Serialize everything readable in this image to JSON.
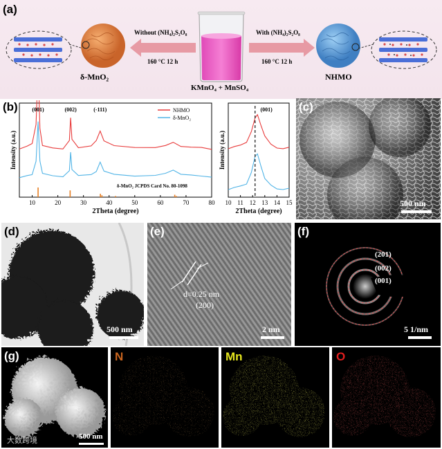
{
  "panel_a": {
    "label": "(a)",
    "left_arrow_top": "Without (NH₄)₂S₂O₈",
    "left_arrow_bottom": "160 °C 12 h",
    "right_arrow_top": "With (NH₄)₂S₂O₈",
    "right_arrow_bottom": "160 °C 12 h",
    "left_product": "δ-MnO₂",
    "right_product": "NHMO",
    "beaker_label": "KMnO₄ + MnSO₄"
  },
  "panel_b": {
    "label": "(b)"
  },
  "panel_c": {
    "label": "(c)",
    "scale_bar": "500 nm"
  },
  "panel_d": {
    "label": "(d)",
    "scale_bar": "500 nm"
  },
  "panel_e": {
    "label": "(e)",
    "scale_bar": "2 nm",
    "d_spacing": "d=0.25 nm",
    "plane": "(200)"
  },
  "panel_f": {
    "label": "(f)",
    "scale_bar": "5 1/nm",
    "rings": [
      "(201)",
      "(002)",
      "(001)"
    ]
  },
  "panel_g": {
    "label": "(g)",
    "scale_bar": "500 nm",
    "maps": [
      "N",
      "Mn",
      "O"
    ],
    "maps_colors": [
      "#c8641e",
      "#e6e61e",
      "#e01e1e"
    ],
    "watermark": "大数跨境"
  },
  "chart_data": [
    {
      "type": "line",
      "xlabel": "2Theta (degree)",
      "ylabel": "Intensity (a.u.)",
      "xlim": [
        5,
        80
      ],
      "xticks": [
        10,
        20,
        30,
        40,
        50,
        60,
        70,
        80
      ],
      "series": [
        {
          "name": "NHMO",
          "color": "#e83a3a",
          "x": [
            5,
            8,
            10,
            11.5,
            12.3,
            13,
            14,
            18,
            22,
            24.5,
            25,
            25.5,
            28,
            33,
            35,
            36.5,
            38,
            42,
            50,
            58,
            62,
            65,
            68,
            72,
            76,
            80
          ],
          "y": [
            0.6,
            0.62,
            0.66,
            0.9,
            1.6,
            0.85,
            0.62,
            0.6,
            0.6,
            0.7,
            0.98,
            0.7,
            0.6,
            0.62,
            0.7,
            0.82,
            0.7,
            0.63,
            0.61,
            0.6,
            0.62,
            0.68,
            0.62,
            0.6,
            0.6,
            0.59
          ]
        },
        {
          "name": "δ-MnO₂",
          "color": "#4fb3e6",
          "x": [
            5,
            8,
            10,
            11.5,
            12.3,
            13,
            14,
            18,
            22,
            24.5,
            25,
            25.5,
            28,
            33,
            35,
            36.5,
            38,
            42,
            50,
            58,
            62,
            65,
            68,
            72,
            76,
            80
          ],
          "y": [
            0.25,
            0.26,
            0.28,
            0.45,
            0.93,
            0.45,
            0.28,
            0.26,
            0.26,
            0.33,
            0.56,
            0.33,
            0.26,
            0.27,
            0.32,
            0.44,
            0.33,
            0.28,
            0.26,
            0.26,
            0.28,
            0.34,
            0.28,
            0.26,
            0.25,
            0.25
          ]
        }
      ],
      "peak_labels": [
        {
          "x": 12.3,
          "text": "(001)"
        },
        {
          "x": 25,
          "text": "(002)"
        },
        {
          "x": 36.5,
          "text": "(-111)"
        }
      ],
      "reference": {
        "name": "δ-MnO₂ JCPDS Card No. 80-1098",
        "x": [
          12.3,
          24.8,
          36.6,
          37.2,
          42.5,
          65.6,
          66.2
        ],
        "h": [
          1.0,
          0.7,
          0.35,
          0.2,
          0.12,
          0.25,
          0.12
        ]
      }
    },
    {
      "type": "line",
      "xlabel": "2Theta (degree)",
      "ylabel": "Intensity (a.u.)",
      "xlim": [
        10,
        15
      ],
      "xticks": [
        10,
        11,
        12,
        13,
        14,
        15
      ],
      "series": [
        {
          "name": "NHMO",
          "color": "#e83a3a",
          "x": [
            10,
            10.5,
            11,
            11.5,
            11.9,
            12.2,
            12.4,
            12.7,
            13,
            13.5,
            14,
            14.5,
            15
          ],
          "y": [
            0.6,
            0.61,
            0.63,
            0.68,
            0.8,
            0.97,
            1.0,
            0.88,
            0.74,
            0.64,
            0.61,
            0.6,
            0.6
          ]
        },
        {
          "name": "δ-MnO₂",
          "color": "#4fb3e6",
          "x": [
            10,
            10.5,
            11,
            11.5,
            11.9,
            12.2,
            12.4,
            12.7,
            13,
            13.5,
            14,
            14.5,
            15
          ],
          "y": [
            0.1,
            0.11,
            0.13,
            0.17,
            0.3,
            0.5,
            0.52,
            0.38,
            0.22,
            0.14,
            0.11,
            0.1,
            0.1
          ]
        }
      ],
      "peak_labels": [
        {
          "x": 12.3,
          "text": "(001)"
        }
      ],
      "dashed_line_x": 12.2
    }
  ]
}
